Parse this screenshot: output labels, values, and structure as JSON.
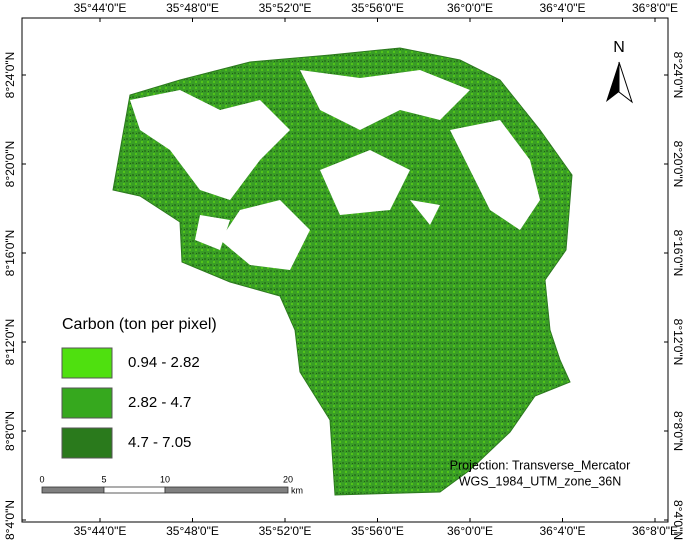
{
  "map": {
    "lon_labels": [
      "35°44'0\"E",
      "35°48'0\"E",
      "35°52'0\"E",
      "35°56'0\"E",
      "36°0'0\"E",
      "36°4'0\"E",
      "36°8'0\"E"
    ],
    "lat_labels": [
      "8°24'0\"N",
      "8°20'0\"N",
      "8°16'0\"N",
      "8°12'0\"N",
      "8°8'0\"N",
      "8°4'0\"N"
    ],
    "north": "N",
    "legend": {
      "title": "Carbon (ton per pixel)",
      "items": [
        {
          "label": "0.94 - 2.82",
          "color": "#4fe00f"
        },
        {
          "label": "2.82 - 4.7",
          "color": "#36a81e"
        },
        {
          "label": "4.7 - 7.05",
          "color": "#2a7a1c"
        }
      ]
    },
    "scale_bar": {
      "labels": [
        "0",
        "5",
        "10",
        "20"
      ],
      "unit": "km"
    },
    "projection": [
      "Projection: Transverse_Mercator",
      "WGS_1984_UTM_zone_36N"
    ]
  }
}
